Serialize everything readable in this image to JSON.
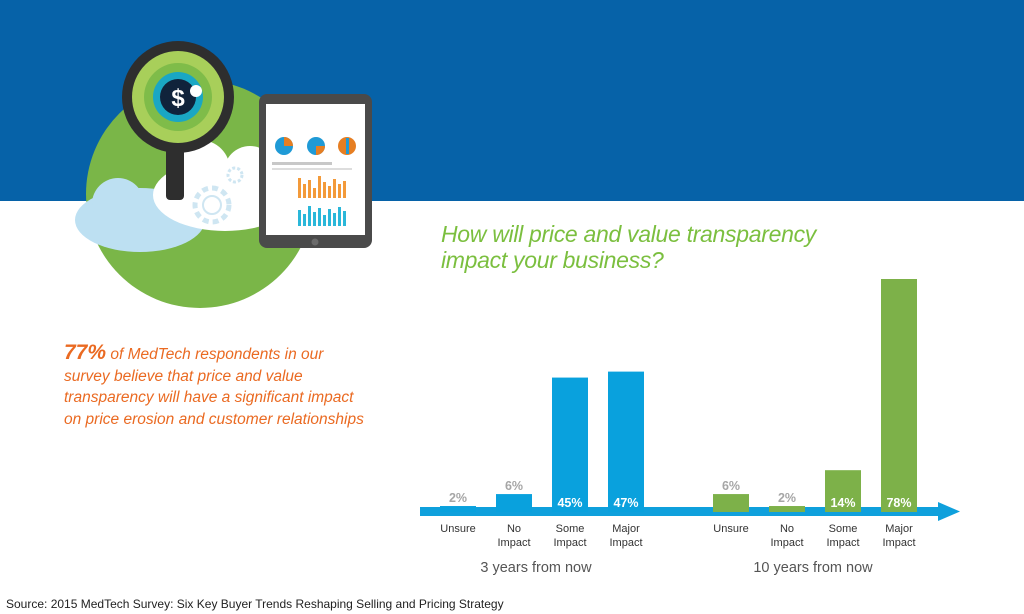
{
  "question_line1": "How will price and value transparency",
  "question_line2": "impact your business?",
  "callout": {
    "stat": "77%",
    "text": " of MedTech respondents in our survey believe that price and value transparency will have a significant impact on price erosion and customer relationships"
  },
  "source": "Source: 2015 MedTech Survey:  Six Key Buyer Trends Reshaping Selling and Pricing Strategy",
  "colors": {
    "banner": "#0662a8",
    "series_3yr": "#09a1dd",
    "series_10yr": "#7db149",
    "arrow": "#0fa0dc",
    "question": "#7bbf3f",
    "callout": "#ea6a22"
  },
  "illustration_icons": [
    "magnifier-dollar-icon",
    "cloud-gears-icon",
    "tablet-dashboard-icon"
  ],
  "chart_data": {
    "type": "bar",
    "categories": [
      "Unsure",
      "No Impact",
      "Some Impact",
      "Major Impact"
    ],
    "category_lines": [
      [
        "Unsure"
      ],
      [
        "No",
        "Impact"
      ],
      [
        "Some",
        "Impact"
      ],
      [
        "Major",
        "Impact"
      ]
    ],
    "ylim": [
      0,
      78
    ],
    "groups": [
      {
        "label": "3 years from now",
        "values": [
          2,
          6,
          45,
          47
        ],
        "value_labels": [
          "2%",
          "6%",
          "45%",
          "47%"
        ]
      },
      {
        "label": "10 years from now",
        "values": [
          6,
          2,
          14,
          78
        ],
        "value_labels": [
          "6%",
          "2%",
          "14%",
          "78%"
        ]
      }
    ]
  }
}
